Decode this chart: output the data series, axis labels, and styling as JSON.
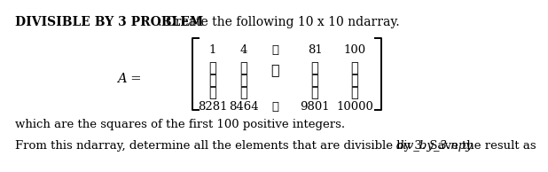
{
  "title_bold": "DIVISIBLE BY 3 PROBLEM",
  "title_colon": ": Create the following 10 x 10 ndarray.",
  "matrix_label": "A =",
  "top_row": [
    "1",
    "4",
    "⋯",
    "81",
    "100"
  ],
  "bot_row": [
    "8281",
    "8464",
    "⋯",
    "9801",
    "10000"
  ],
  "vdots": "⋮",
  "ddots": "⋱",
  "line1": "which are the squares of the first 100 positive integers.",
  "line2_normal": "From this ndarray, determine all the elements that are divisible by 3. Save the result as ",
  "line2_italic": "div_by_3.npy",
  "fs": 9.5,
  "text_color": "#000000",
  "bg_color": "#ffffff"
}
